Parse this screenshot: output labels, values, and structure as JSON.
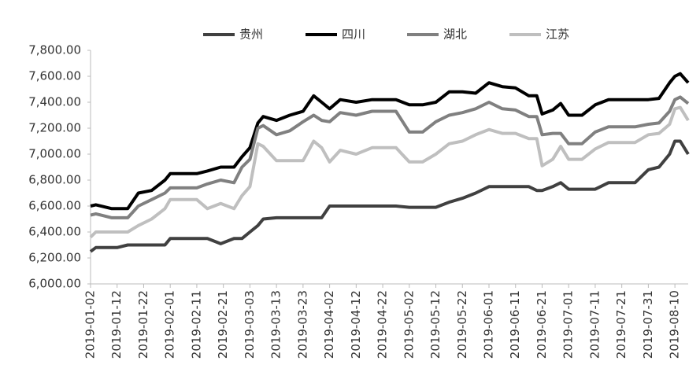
{
  "chart_data": {
    "type": "line",
    "x": [
      "2019-01-02",
      "2019-01-04",
      "2019-01-10",
      "2019-01-12",
      "2019-01-16",
      "2019-01-20",
      "2019-01-25",
      "2019-01-30",
      "2019-02-01",
      "2019-02-11",
      "2019-02-15",
      "2019-02-20",
      "2019-02-25",
      "2019-02-28",
      "2019-03-03",
      "2019-03-06",
      "2019-03-08",
      "2019-03-13",
      "2019-03-18",
      "2019-03-23",
      "2019-03-27",
      "2019-03-30",
      "2019-04-02",
      "2019-04-06",
      "2019-04-12",
      "2019-04-18",
      "2019-04-22",
      "2019-04-27",
      "2019-05-02",
      "2019-05-07",
      "2019-05-12",
      "2019-05-17",
      "2019-05-22",
      "2019-05-27",
      "2019-06-01",
      "2019-06-06",
      "2019-06-11",
      "2019-06-16",
      "2019-06-19",
      "2019-06-21",
      "2019-06-25",
      "2019-06-28",
      "2019-07-01",
      "2019-07-06",
      "2019-07-11",
      "2019-07-16",
      "2019-07-21",
      "2019-07-26",
      "2019-07-31",
      "2019-08-04",
      "2019-08-08",
      "2019-08-10",
      "2019-08-12",
      "2019-08-15"
    ],
    "series": [
      {
        "name": "贵州",
        "color": "#404040",
        "values": [
          6250,
          6280,
          6280,
          6280,
          6300,
          6300,
          6300,
          6300,
          6350,
          6350,
          6350,
          6310,
          6350,
          6350,
          6400,
          6450,
          6500,
          6510,
          6510,
          6510,
          6510,
          6510,
          6600,
          6600,
          6600,
          6600,
          6600,
          6600,
          6590,
          6590,
          6590,
          6630,
          6660,
          6700,
          6750,
          6750,
          6750,
          6750,
          6720,
          6720,
          6750,
          6780,
          6730,
          6730,
          6730,
          6780,
          6780,
          6780,
          6880,
          6900,
          7000,
          7100,
          7100,
          7000
        ]
      },
      {
        "name": "四川",
        "color": "#000000",
        "values": [
          6600,
          6610,
          6580,
          6580,
          6580,
          6700,
          6720,
          6800,
          6850,
          6850,
          6870,
          6900,
          6900,
          6980,
          7050,
          7240,
          7290,
          7260,
          7300,
          7330,
          7450,
          7400,
          7350,
          7420,
          7400,
          7420,
          7420,
          7420,
          7380,
          7380,
          7400,
          7480,
          7480,
          7470,
          7550,
          7520,
          7510,
          7450,
          7450,
          7310,
          7340,
          7390,
          7300,
          7300,
          7380,
          7420,
          7420,
          7420,
          7420,
          7430,
          7550,
          7600,
          7620,
          7550
        ]
      },
      {
        "name": "湖北",
        "color": "#808080",
        "values": [
          6530,
          6540,
          6510,
          6510,
          6510,
          6600,
          6650,
          6700,
          6740,
          6740,
          6770,
          6800,
          6780,
          6900,
          6960,
          7200,
          7220,
          7150,
          7180,
          7250,
          7300,
          7260,
          7250,
          7320,
          7300,
          7330,
          7330,
          7330,
          7170,
          7170,
          7250,
          7300,
          7320,
          7350,
          7400,
          7350,
          7340,
          7290,
          7290,
          7150,
          7160,
          7160,
          7080,
          7080,
          7170,
          7210,
          7210,
          7210,
          7230,
          7240,
          7330,
          7420,
          7440,
          7390
        ]
      },
      {
        "name": "江苏",
        "color": "#bfbfbf",
        "values": [
          6360,
          6400,
          6400,
          6400,
          6400,
          6450,
          6500,
          6580,
          6650,
          6650,
          6580,
          6620,
          6580,
          6680,
          6750,
          7080,
          7060,
          6950,
          6950,
          6950,
          7100,
          7050,
          6940,
          7030,
          7000,
          7050,
          7050,
          7050,
          6940,
          6940,
          7000,
          7080,
          7100,
          7150,
          7190,
          7160,
          7160,
          7120,
          7120,
          6910,
          6960,
          7060,
          6960,
          6960,
          7040,
          7090,
          7090,
          7090,
          7150,
          7160,
          7230,
          7350,
          7360,
          7260
        ]
      }
    ],
    "xlim": [
      "2019-01-02",
      "2019-08-15"
    ],
    "xticks": [
      "2019-01-02",
      "2019-01-12",
      "2019-01-22",
      "2019-02-01",
      "2019-02-11",
      "2019-02-21",
      "2019-03-03",
      "2019-03-13",
      "2019-03-23",
      "2019-04-02",
      "2019-04-12",
      "2019-04-22",
      "2019-05-02",
      "2019-05-12",
      "2019-05-22",
      "2019-06-01",
      "2019-06-11",
      "2019-06-21",
      "2019-07-01",
      "2019-07-11",
      "2019-07-21",
      "2019-07-31",
      "2019-08-10"
    ],
    "ylim": [
      6000,
      7800
    ],
    "yticks": [
      {
        "value": 6000,
        "label": "6,000.00"
      },
      {
        "value": 6200,
        "label": "6,200.00"
      },
      {
        "value": 6400,
        "label": "6,400.00"
      },
      {
        "value": 6600,
        "label": "6,600.00"
      },
      {
        "value": 6800,
        "label": "6,800.00"
      },
      {
        "value": 7000,
        "label": "7,000.00"
      },
      {
        "value": 7200,
        "label": "7,200.00"
      },
      {
        "value": 7400,
        "label": "7,400.00"
      },
      {
        "value": 7600,
        "label": "7,600.00"
      },
      {
        "value": 7800,
        "label": "7,800.00"
      }
    ],
    "grid": false,
    "legend": "top"
  }
}
